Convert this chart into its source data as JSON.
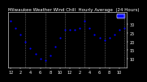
{
  "title": "Milwaukee Weather Wind Chill  Hourly Average  (24 Hours)",
  "background_color": "#000000",
  "plot_bg_color": "#000000",
  "dot_color": "#0000ff",
  "legend_color": "#0000ff",
  "grid_color": "#666666",
  "text_color": "#ffffff",
  "hours": [
    0,
    1,
    2,
    3,
    4,
    5,
    6,
    7,
    8,
    9,
    10,
    11,
    12,
    13,
    14,
    15,
    16,
    17,
    18,
    19,
    20,
    21,
    22,
    23
  ],
  "wind_chill": [
    32,
    28,
    24,
    20,
    16,
    13,
    10,
    9,
    12,
    17,
    22,
    27,
    27,
    27,
    28,
    32,
    28,
    24,
    22,
    21,
    22,
    24,
    27,
    28
  ],
  "ylim": [
    5,
    37
  ],
  "yticks": [
    10,
    15,
    20,
    25,
    30
  ],
  "xlim": [
    -0.5,
    23.5
  ],
  "vline_positions": [
    3,
    7,
    11,
    15,
    19,
    23
  ],
  "title_fontsize": 4.0,
  "tick_fontsize": 3.5,
  "dot_size": 2.5
}
